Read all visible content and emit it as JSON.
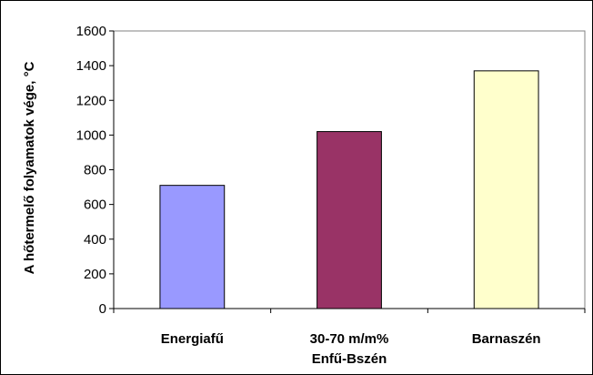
{
  "chart_data": {
    "type": "bar",
    "categories": [
      [
        "Energiafű"
      ],
      [
        "30-70 m/m%",
        "Enfű-Bszén"
      ],
      [
        "Barnaszén"
      ]
    ],
    "values": [
      710,
      1020,
      1370
    ],
    "colors": [
      "#9999ff",
      "#993366",
      "#ffffcc"
    ],
    "ylabel": "A hőtermelő folyamatok  vége, °C",
    "ylim": [
      0,
      1600
    ],
    "yticks": [
      0,
      200,
      400,
      600,
      800,
      1000,
      1200,
      1400,
      1600
    ],
    "grid": false,
    "plot_border": "#808080"
  }
}
